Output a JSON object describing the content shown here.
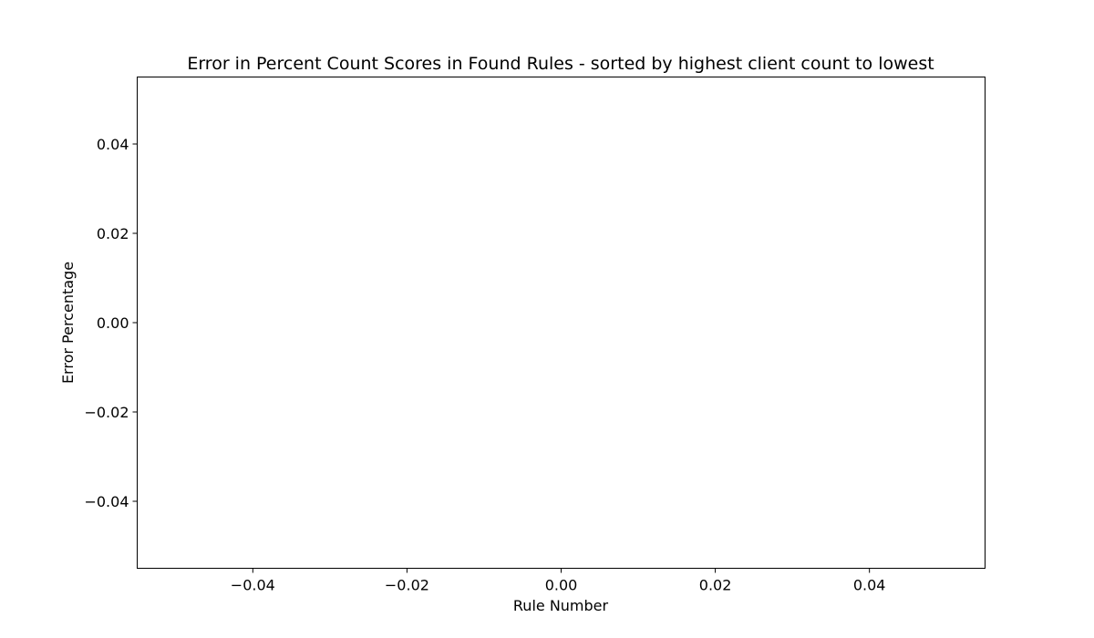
{
  "chart_data": {
    "type": "scatter",
    "title": "Error in Percent Count Scores in Found Rules - sorted by highest client count to lowest",
    "xlabel": "Rule Number",
    "ylabel": "Error Percentage",
    "xlim": [
      -0.055,
      0.055
    ],
    "ylim": [
      -0.055,
      0.055
    ],
    "x_ticks": [
      -0.04,
      -0.02,
      0.0,
      0.02,
      0.04
    ],
    "x_tick_labels": [
      "−0.04",
      "−0.02",
      "0.00",
      "0.02",
      "0.04"
    ],
    "y_ticks": [
      -0.04,
      -0.02,
      0.0,
      0.02,
      0.04
    ],
    "y_tick_labels": [
      "−0.04",
      "−0.02",
      "0.00",
      "0.02",
      "0.04"
    ],
    "series": [
      {
        "x": [],
        "y": []
      }
    ],
    "grid": false
  }
}
